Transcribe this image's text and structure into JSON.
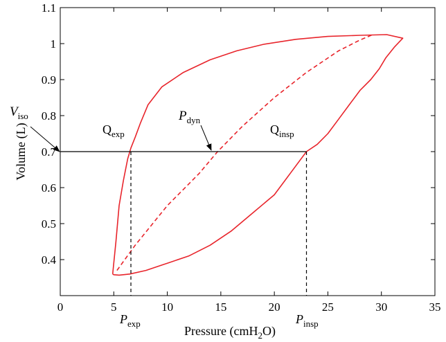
{
  "chart_data": {
    "type": "line",
    "title": "",
    "xlabel": "Pressure (cmH",
    "xlabel_sub": "2",
    "xlabel_tail": "O)",
    "ylabel": "Volume (L)",
    "xlim": [
      0,
      35
    ],
    "ylim": [
      0.3,
      1.1
    ],
    "xticks": [
      0,
      5,
      10,
      15,
      20,
      25,
      30,
      35
    ],
    "yticks": [
      0.4,
      0.5,
      0.6,
      0.7,
      0.8,
      0.9,
      1,
      1.1
    ],
    "ytick_labels": [
      "0.4",
      "0.5",
      "0.6",
      "0.7",
      "0.8",
      "0.9",
      "1",
      "1.1"
    ],
    "grid": false,
    "colors": {
      "loop": "#e8242b",
      "axis": "#000000",
      "p_labels": "#e8242b"
    },
    "series": [
      {
        "style": "solid",
        "x": [
          4.9,
          5.2,
          5.5,
          5.9,
          6.3,
          6.6,
          7.0,
          7.5,
          8.2,
          9.5,
          11.5,
          14.0,
          16.5,
          19.0,
          22.0,
          25.0,
          28.0,
          30.5,
          32.0,
          31.2,
          30.4,
          29.8,
          29.0,
          28.0,
          27.0,
          26.0,
          25.0,
          24.0,
          23.0,
          21.5,
          20.0,
          18.0,
          16.0,
          14.0,
          12.0,
          10.0,
          8.0,
          6.5,
          5.5,
          5.0,
          4.9
        ],
        "y": [
          0.36,
          0.45,
          0.55,
          0.62,
          0.68,
          0.71,
          0.74,
          0.78,
          0.83,
          0.88,
          0.92,
          0.955,
          0.98,
          0.998,
          1.012,
          1.02,
          1.023,
          1.025,
          1.015,
          0.99,
          0.96,
          0.93,
          0.9,
          0.87,
          0.83,
          0.79,
          0.75,
          0.72,
          0.7,
          0.64,
          0.58,
          0.53,
          0.48,
          0.44,
          0.41,
          0.39,
          0.37,
          0.36,
          0.357,
          0.358,
          0.36
        ]
      },
      {
        "style": "dashed",
        "x": [
          5.3,
          7.0,
          10.0,
          13.0,
          14.7,
          17.0,
          20.0,
          23.0,
          26.0,
          28.0,
          29.2
        ],
        "y": [
          0.37,
          0.44,
          0.55,
          0.64,
          0.7,
          0.77,
          0.85,
          0.92,
          0.98,
          1.01,
          1.025
        ]
      }
    ],
    "iso_line": {
      "x": [
        0,
        23.0
      ],
      "y": 0.7
    },
    "markers": [
      {
        "label": "P",
        "sub": "exp",
        "x": 6.6
      },
      {
        "label": "P",
        "sub": "insp",
        "x": 23.0
      }
    ],
    "annotations": [
      {
        "label": "V",
        "sub": "iso"
      },
      {
        "label": "Q",
        "sub": "exp"
      },
      {
        "label": "P",
        "sub": "dyn"
      },
      {
        "label": "Q",
        "sub": "insp"
      }
    ]
  }
}
